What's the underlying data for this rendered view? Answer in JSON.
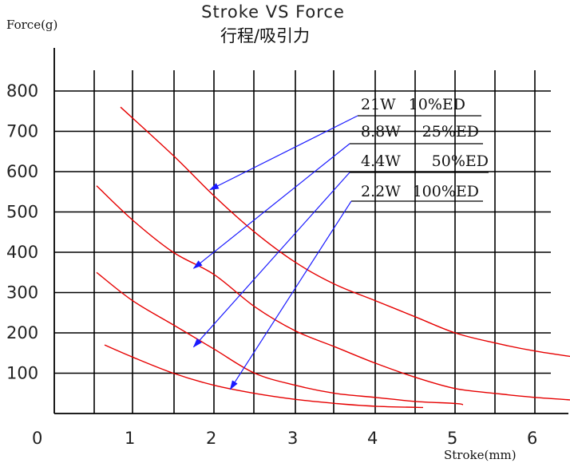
{
  "chart_data": {
    "type": "line",
    "title": "Stroke VS  Force",
    "subtitle": "行程/吸引力",
    "ylabel": "Force(g)",
    "xlabel": "Stroke(mm)",
    "xlim": [
      0,
      6.4
    ],
    "ylim": [
      0,
      800
    ],
    "x_ticks": [
      {
        "value": 0,
        "label": "0"
      },
      {
        "value": 1,
        "label": "1"
      },
      {
        "value": 2,
        "label": "2"
      },
      {
        "value": 3,
        "label": "3"
      },
      {
        "value": 4,
        "label": "4"
      },
      {
        "value": 5,
        "label": "5"
      },
      {
        "value": 6,
        "label": "6"
      }
    ],
    "y_ticks": [
      {
        "value": 100,
        "label": "100"
      },
      {
        "value": 200,
        "label": "200"
      },
      {
        "value": 300,
        "label": "300"
      },
      {
        "value": 400,
        "label": "400"
      },
      {
        "value": 500,
        "label": "500"
      },
      {
        "value": 600,
        "label": "600"
      },
      {
        "value": 700,
        "label": "700"
      },
      {
        "value": 800,
        "label": "800"
      }
    ],
    "grid": true,
    "legend_position": "top-right",
    "series": [
      {
        "power": "21W",
        "duty": "10%ED",
        "color": "#e60000",
        "x": [
          0.85,
          1.5,
          2.0,
          2.5,
          3.0,
          3.5,
          4.0,
          4.5,
          5.0,
          5.5,
          6.0,
          6.5
        ],
        "y": [
          760,
          640,
          540,
          450,
          375,
          320,
          280,
          240,
          200,
          175,
          155,
          140
        ]
      },
      {
        "power": "8.8W",
        "duty": "25%ED",
        "color": "#e60000",
        "x": [
          0.55,
          1.0,
          1.5,
          2.0,
          2.5,
          3.0,
          3.5,
          4.0,
          4.5,
          5.0,
          5.5,
          6.0,
          6.5
        ],
        "y": [
          565,
          480,
          400,
          345,
          265,
          205,
          165,
          125,
          90,
          62,
          50,
          40,
          33
        ]
      },
      {
        "power": "4.4W",
        "duty": "50%ED",
        "color": "#e60000",
        "x": [
          0.55,
          1.0,
          1.5,
          2.0,
          2.5,
          3.0,
          3.5,
          4.0,
          4.5,
          5.0,
          5.1
        ],
        "y": [
          350,
          280,
          220,
          160,
          100,
          70,
          50,
          40,
          30,
          25,
          22
        ]
      },
      {
        "power": "2.2W",
        "duty": "100%ED",
        "color": "#e60000",
        "x": [
          0.65,
          1.0,
          1.5,
          2.0,
          2.5,
          3.0,
          3.5,
          4.0,
          4.6
        ],
        "y": [
          170,
          140,
          100,
          70,
          50,
          35,
          25,
          18,
          15
        ]
      }
    ],
    "legend": [
      {
        "power": "21W",
        "duty": "10%ED",
        "arrow_to": {
          "x": 1.95,
          "y": 555
        }
      },
      {
        "power": "8.8W",
        "duty": "25%ED",
        "arrow_to": {
          "x": 1.75,
          "y": 360
        }
      },
      {
        "power": "4.4W",
        "duty": "50%ED",
        "arrow_to": {
          "x": 1.75,
          "y": 165
        }
      },
      {
        "power": "2.2W",
        "duty": "100%ED",
        "arrow_to": {
          "x": 2.2,
          "y": 60
        }
      }
    ],
    "colors": {
      "curve": "#e60000",
      "arrow": "#1a1aff",
      "grid": "#000000"
    }
  }
}
